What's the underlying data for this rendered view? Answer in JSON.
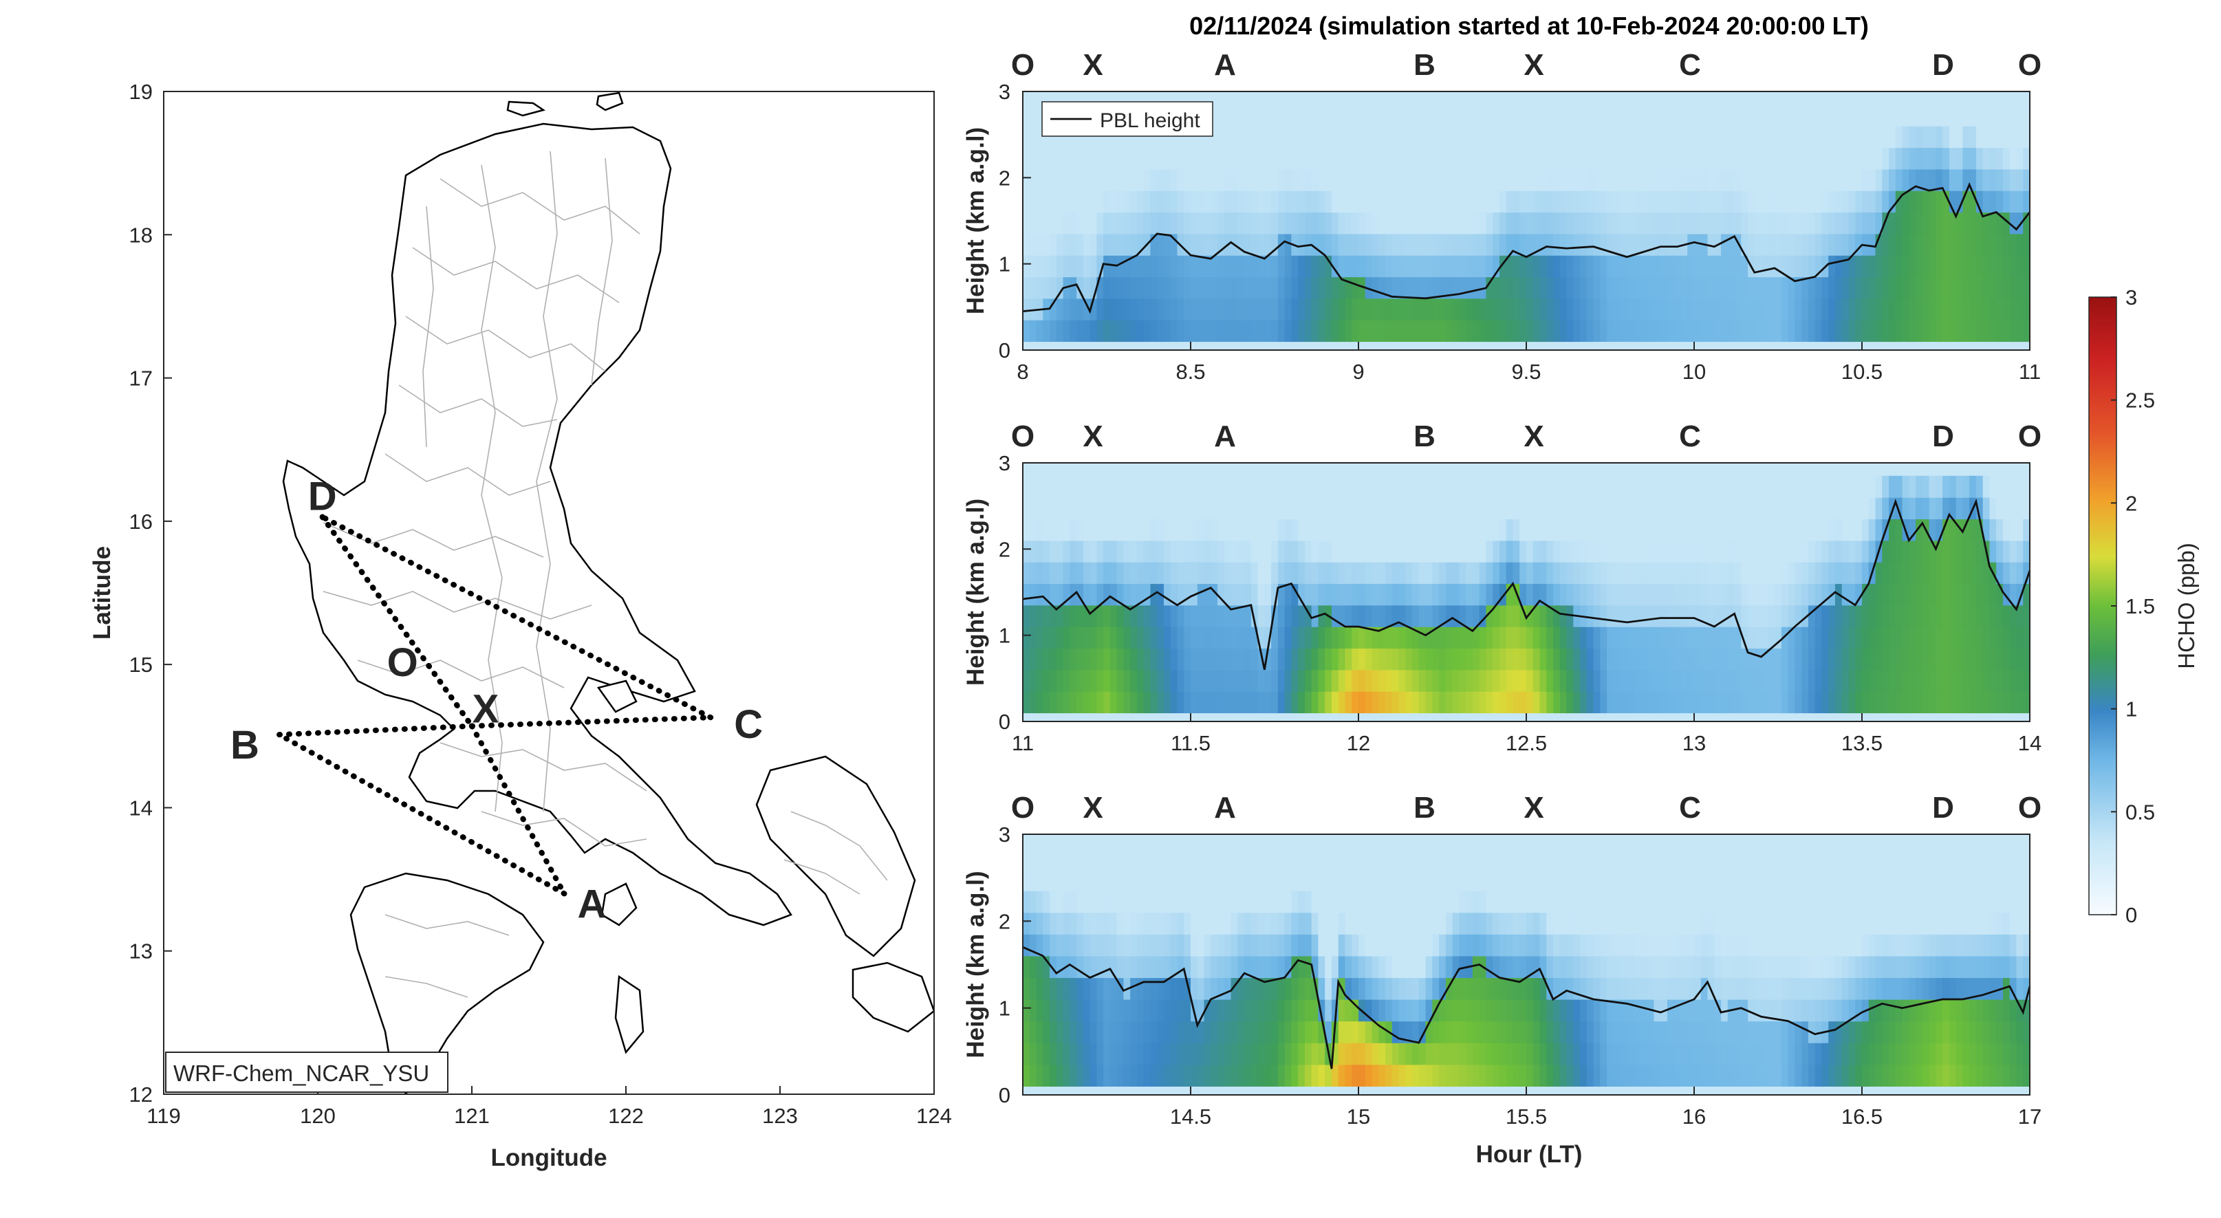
{
  "title": "02/11/2024 (simulation started at 10-Feb-2024 20:00:00 LT)",
  "map": {
    "xlabel": "Longitude",
    "ylabel": "Latitude",
    "xlim": [
      119,
      124
    ],
    "ylim": [
      12,
      19
    ],
    "xticks": [
      "119",
      "120",
      "121",
      "122",
      "123",
      "124"
    ],
    "yticks": [
      "12",
      "13",
      "14",
      "15",
      "16",
      "17",
      "18",
      "19"
    ],
    "model_label": "WRF-Chem_NCAR_YSU",
    "points": [
      {
        "name": "D",
        "lon": 120.03,
        "lat": 16.03,
        "color": "#7b2d8e"
      },
      {
        "name": "O",
        "lon": 120.55,
        "lat": 15.16,
        "color": "#000000"
      },
      {
        "name": "X",
        "lon": 121.0,
        "lat": 14.57,
        "color": "#a3172f"
      },
      {
        "name": "C",
        "lon": 122.55,
        "lat": 14.63,
        "color": "#4db8e8"
      },
      {
        "name": "B",
        "lon": 119.75,
        "lat": 14.51,
        "color": "#6aab2f"
      },
      {
        "name": "A",
        "lon": 121.6,
        "lat": 13.4,
        "color": "#f0b119"
      }
    ],
    "flight_path": [
      "D",
      "X",
      "C",
      "D",
      "X",
      "A",
      "B",
      "X"
    ]
  },
  "waypoints": [
    {
      "label": "O",
      "color": "#000000"
    },
    {
      "label": "X",
      "color": "#a3172f"
    },
    {
      "label": "A",
      "color": "#f0b119"
    },
    {
      "label": "B",
      "color": "#6aab2f"
    },
    {
      "label": "X",
      "color": "#a3172f"
    },
    {
      "label": "C",
      "color": "#4db8e8"
    },
    {
      "label": "D",
      "color": "#7b2d8e"
    },
    {
      "label": "O",
      "color": "#000000"
    }
  ],
  "legend_label": "PBL height",
  "ylabel": "Height (km a.g.l)",
  "xlabel": "Hour (LT)",
  "colorbar": {
    "label": "HCHO (ppb)",
    "ticks": [
      "0",
      "0.5",
      "1",
      "1.5",
      "2",
      "2.5",
      "3"
    ],
    "range": [
      0,
      3
    ]
  },
  "chart_data": [
    {
      "type": "heatmap",
      "panel": 1,
      "xlim": [
        8,
        11
      ],
      "ylim": [
        0,
        3
      ],
      "xticks": [
        "8",
        "8.5",
        "9",
        "9.5",
        "10",
        "10.5",
        "11"
      ],
      "yticks": [
        "0",
        "1",
        "2",
        "3"
      ],
      "pbl_height": {
        "name": "PBL height",
        "x": [
          8.0,
          8.08,
          8.12,
          8.16,
          8.2,
          8.24,
          8.28,
          8.34,
          8.4,
          8.44,
          8.5,
          8.56,
          8.62,
          8.66,
          8.72,
          8.78,
          8.82,
          8.86,
          8.9,
          8.95,
          9.0,
          9.1,
          9.2,
          9.3,
          9.38,
          9.42,
          9.46,
          9.5,
          9.56,
          9.62,
          9.7,
          9.8,
          9.9,
          9.95,
          10.0,
          10.06,
          10.12,
          10.18,
          10.24,
          10.3,
          10.36,
          10.4,
          10.46,
          10.5,
          10.54,
          10.58,
          10.62,
          10.66,
          10.7,
          10.74,
          10.78,
          10.82,
          10.86,
          10.9,
          10.96,
          11.0
        ],
        "y": [
          0.45,
          0.48,
          0.72,
          0.76,
          0.45,
          1.0,
          0.98,
          1.1,
          1.35,
          1.33,
          1.1,
          1.06,
          1.25,
          1.14,
          1.06,
          1.26,
          1.2,
          1.22,
          1.1,
          0.82,
          0.75,
          0.62,
          0.6,
          0.65,
          0.72,
          0.95,
          1.15,
          1.08,
          1.2,
          1.18,
          1.2,
          1.08,
          1.2,
          1.2,
          1.25,
          1.2,
          1.32,
          0.9,
          0.95,
          0.8,
          0.85,
          1.0,
          1.05,
          1.22,
          1.2,
          1.6,
          1.8,
          1.9,
          1.85,
          1.88,
          1.55,
          1.92,
          1.55,
          1.6,
          1.4,
          1.6
        ]
      },
      "hcho_profile": {
        "x": [
          8.0,
          8.25,
          8.5,
          8.75,
          9.0,
          9.25,
          9.5,
          9.75,
          10.0,
          10.25,
          10.5,
          10.75,
          11.0
        ],
        "surface_ppb": [
          0.8,
          1.1,
          0.9,
          0.9,
          1.4,
          1.4,
          1.2,
          0.8,
          0.75,
          0.7,
          1.2,
          1.4,
          1.3
        ],
        "mixed_layer_ppb": [
          0.7,
          0.9,
          0.8,
          0.8,
          1.3,
          1.3,
          1.1,
          0.75,
          0.7,
          0.7,
          1.1,
          1.4,
          1.25
        ],
        "free_troposphere_ppb": 0.35
      }
    },
    {
      "type": "heatmap",
      "panel": 2,
      "xlim": [
        11,
        14
      ],
      "ylim": [
        0,
        3
      ],
      "xticks": [
        "11",
        "11.5",
        "12",
        "12.5",
        "13",
        "13.5",
        "14"
      ],
      "yticks": [
        "0",
        "1",
        "2",
        "3"
      ],
      "pbl_height": {
        "name": "PBL height",
        "x": [
          11.0,
          11.06,
          11.1,
          11.16,
          11.2,
          11.26,
          11.32,
          11.4,
          11.46,
          11.5,
          11.56,
          11.62,
          11.68,
          11.72,
          11.76,
          11.8,
          11.86,
          11.9,
          11.96,
          12.0,
          12.06,
          12.12,
          12.2,
          12.28,
          12.34,
          12.4,
          12.46,
          12.5,
          12.54,
          12.6,
          12.7,
          12.8,
          12.9,
          13.0,
          13.06,
          13.12,
          13.16,
          13.2,
          13.26,
          13.3,
          13.36,
          13.42,
          13.48,
          13.52,
          13.56,
          13.6,
          13.64,
          13.68,
          13.72,
          13.76,
          13.8,
          13.84,
          13.88,
          13.92,
          13.96,
          14.0
        ],
        "y": [
          1.42,
          1.45,
          1.3,
          1.5,
          1.25,
          1.45,
          1.3,
          1.5,
          1.35,
          1.45,
          1.55,
          1.3,
          1.35,
          0.6,
          1.55,
          1.6,
          1.2,
          1.25,
          1.1,
          1.1,
          1.05,
          1.15,
          1.0,
          1.2,
          1.05,
          1.3,
          1.6,
          1.2,
          1.4,
          1.25,
          1.2,
          1.15,
          1.2,
          1.2,
          1.1,
          1.25,
          0.8,
          0.75,
          0.95,
          1.1,
          1.3,
          1.5,
          1.35,
          1.6,
          2.1,
          2.55,
          2.1,
          2.3,
          2.0,
          2.4,
          2.2,
          2.55,
          1.8,
          1.5,
          1.3,
          1.75
        ]
      },
      "hcho_profile": {
        "x": [
          11.0,
          11.25,
          11.5,
          11.75,
          12.0,
          12.25,
          12.5,
          12.75,
          13.0,
          13.25,
          13.5,
          13.75,
          14.0
        ],
        "surface_ppb": [
          1.2,
          1.6,
          0.9,
          0.9,
          2.2,
          1.6,
          1.9,
          0.8,
          0.75,
          0.7,
          1.3,
          1.4,
          1.3
        ],
        "mixed_layer_ppb": [
          1.1,
          1.3,
          0.8,
          0.8,
          1.5,
          1.4,
          1.5,
          0.75,
          0.7,
          0.7,
          1.2,
          1.4,
          1.2
        ],
        "free_troposphere_ppb": 0.35
      }
    },
    {
      "type": "heatmap",
      "panel": 3,
      "xlim": [
        14,
        17
      ],
      "ylim": [
        0,
        3
      ],
      "xticks": [
        "14.5",
        "15",
        "15.5",
        "16",
        "16.5",
        "17"
      ],
      "yticks": [
        "0",
        "1",
        "2",
        "3"
      ],
      "pbl_height": {
        "name": "PBL height",
        "x": [
          14.0,
          14.06,
          14.1,
          14.14,
          14.2,
          14.26,
          14.3,
          14.36,
          14.42,
          14.48,
          14.52,
          14.56,
          14.62,
          14.66,
          14.72,
          14.78,
          14.82,
          14.86,
          14.92,
          14.94,
          14.96,
          15.0,
          15.06,
          15.12,
          15.18,
          15.24,
          15.3,
          15.36,
          15.42,
          15.48,
          15.54,
          15.58,
          15.62,
          15.7,
          15.8,
          15.9,
          16.0,
          16.04,
          16.08,
          16.14,
          16.2,
          16.28,
          16.36,
          16.42,
          16.46,
          16.5,
          16.56,
          16.62,
          16.68,
          16.74,
          16.8,
          16.86,
          16.9,
          16.94,
          16.98,
          17.0
        ],
        "y": [
          1.7,
          1.6,
          1.4,
          1.5,
          1.35,
          1.45,
          1.2,
          1.3,
          1.3,
          1.45,
          0.8,
          1.1,
          1.2,
          1.4,
          1.3,
          1.35,
          1.55,
          1.5,
          0.3,
          1.3,
          1.15,
          1.0,
          0.8,
          0.65,
          0.6,
          1.05,
          1.45,
          1.5,
          1.35,
          1.3,
          1.45,
          1.1,
          1.2,
          1.1,
          1.05,
          0.95,
          1.1,
          1.3,
          0.95,
          1.0,
          0.9,
          0.85,
          0.7,
          0.75,
          0.85,
          0.95,
          1.05,
          1.0,
          1.05,
          1.1,
          1.1,
          1.15,
          1.2,
          1.25,
          0.95,
          1.25
        ]
      },
      "hcho_profile": {
        "x": [
          14.0,
          14.25,
          14.5,
          14.75,
          15.0,
          15.25,
          15.5,
          15.75,
          16.0,
          16.25,
          16.5,
          16.75,
          17.0
        ],
        "surface_ppb": [
          1.5,
          0.9,
          1.1,
          1.3,
          2.3,
          1.7,
          1.5,
          0.8,
          0.75,
          0.7,
          1.3,
          1.6,
          1.3
        ],
        "mixed_layer_ppb": [
          1.3,
          0.85,
          1.0,
          1.2,
          1.5,
          1.4,
          1.3,
          0.75,
          0.7,
          0.7,
          1.2,
          1.5,
          1.2
        ],
        "free_troposphere_ppb": 0.35
      }
    }
  ]
}
